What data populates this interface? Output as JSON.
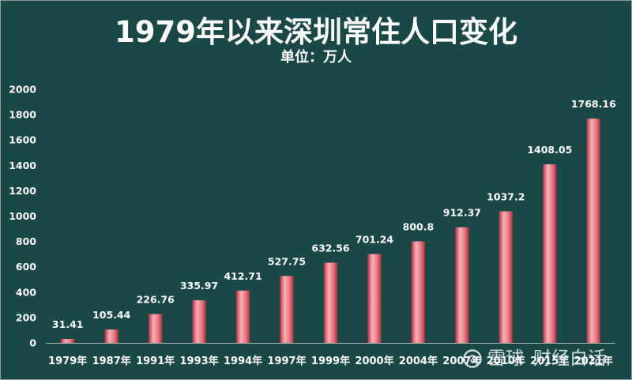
{
  "colors": {
    "background": "#194846",
    "text": "#ffffff",
    "axis": "#a9b4b3",
    "bar_gradient": [
      "#bd3242",
      "#f6b1b7",
      "#e57983",
      "#b62e3d"
    ]
  },
  "watermark": {
    "logo_icon": "xueqiu-logo-icon",
    "brand": "雪球",
    "author": "财经白话"
  },
  "chart_data": {
    "type": "bar",
    "title": "1979年以来深圳常住人口变化",
    "subtitle": "单位：万人",
    "xlabel": "",
    "ylabel": "",
    "categories": [
      "1979年",
      "1987年",
      "1991年",
      "1993年",
      "1994年",
      "1997年",
      "1999年",
      "2000年",
      "2004年",
      "2007年",
      "2010年",
      "2015年",
      "2021年"
    ],
    "values": [
      31.41,
      105.44,
      226.76,
      335.97,
      412.71,
      527.75,
      632.56,
      701.24,
      800.8,
      912.37,
      1037.2,
      1408.05,
      1768.16
    ],
    "ylim": [
      0,
      2000
    ],
    "yticks": [
      0,
      200,
      400,
      600,
      800,
      1000,
      1200,
      1400,
      1600,
      1800,
      2000
    ],
    "grid": false,
    "legend": "none",
    "data_labels": "above"
  }
}
